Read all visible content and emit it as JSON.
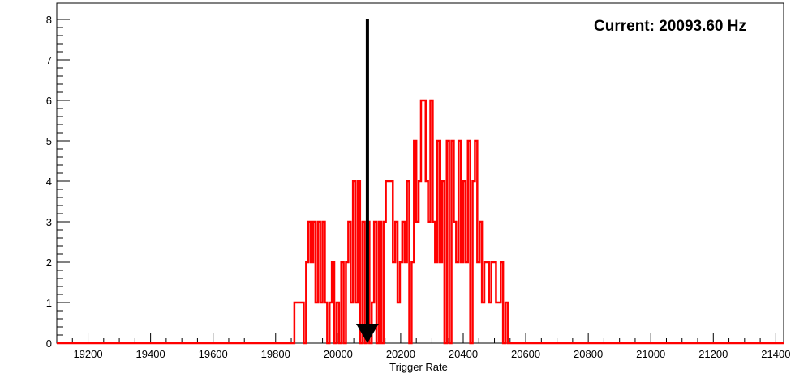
{
  "chart_data": {
    "type": "bar",
    "title": "Current: 20093.60 Hz",
    "xlabel": "Trigger Rate",
    "ylabel": "",
    "xlim": [
      19100,
      21425
    ],
    "ylim": [
      0,
      8.4
    ],
    "xticks": [
      19200,
      19400,
      19600,
      19800,
      20000,
      20200,
      20400,
      20600,
      20800,
      21000,
      21200,
      21400
    ],
    "yticks": [
      0,
      1,
      2,
      3,
      4,
      5,
      6,
      7,
      8
    ],
    "series": [
      {
        "color": "#ff0000",
        "bin_width": 7.5,
        "x_start": 19860,
        "values": [
          1,
          1,
          1,
          1,
          0,
          2,
          3,
          2,
          3,
          1,
          3,
          1,
          3,
          1,
          0,
          1,
          2,
          0,
          1,
          0,
          2,
          0,
          2,
          3,
          1,
          4,
          1,
          4,
          0,
          3,
          0,
          3,
          0,
          1,
          3,
          0,
          3,
          0,
          3,
          4,
          4,
          4,
          2,
          3,
          1,
          2,
          3,
          2,
          4,
          0,
          2,
          5,
          3,
          4,
          6,
          6,
          4,
          3,
          6,
          3,
          2,
          5,
          2,
          4,
          0,
          5,
          0,
          5,
          3,
          2,
          5,
          2,
          4,
          2,
          5,
          0,
          4,
          5,
          2,
          3,
          1,
          2,
          2,
          1,
          2,
          2,
          1,
          1,
          2,
          0,
          1
        ]
      }
    ],
    "annotation": {
      "type": "arrow",
      "x": 20093.6,
      "y_from": 8,
      "y_to": 0,
      "color": "#000000"
    }
  }
}
